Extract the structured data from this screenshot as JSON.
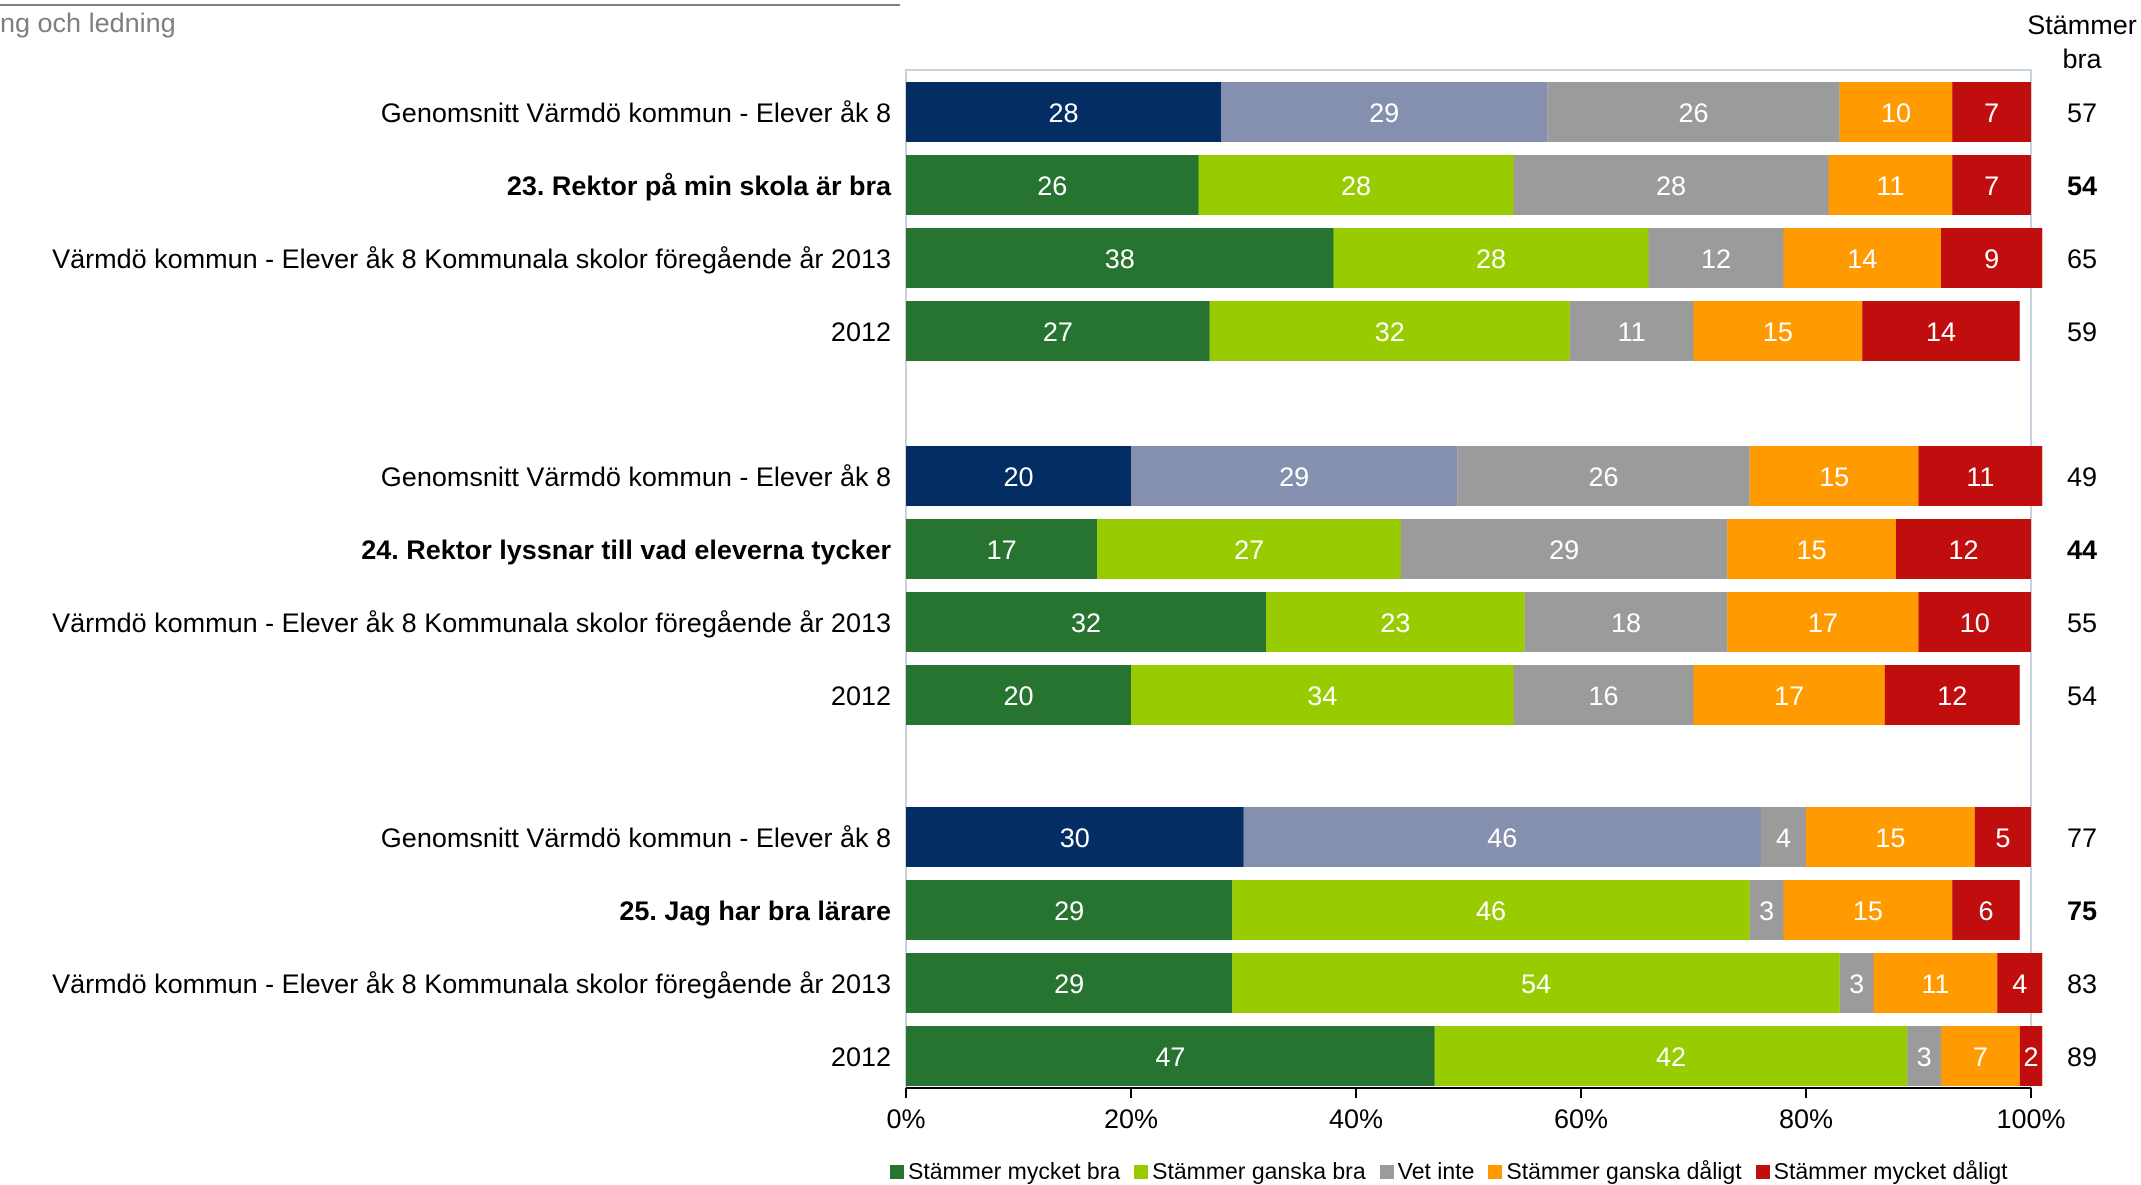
{
  "header": {
    "title": "ng och ledning"
  },
  "right_column_header": "Stämmer\nbra",
  "colors": {
    "avg_very_good": "#042e63",
    "avg_fairly_good": "#8590ae",
    "very_good": "#267430",
    "fairly_good": "#99cc00",
    "dont_know": "#9b9b9b",
    "fairly_bad": "#ff9a00",
    "very_bad": "#c00d0d"
  },
  "chart_data": {
    "type": "bar",
    "orientation": "horizontal",
    "stacked": true,
    "xlim": [
      0,
      100
    ],
    "xticks": [
      "0%",
      "20%",
      "40%",
      "60%",
      "80%",
      "100%"
    ],
    "legend": {
      "placement": "bottom",
      "entries": [
        "Stämmer mycket bra",
        "Stämmer ganska bra",
        "Vet inte",
        "Stämmer ganska dåligt",
        "Stämmer mycket dåligt"
      ]
    },
    "groups": [
      {
        "rows": [
          {
            "label": "Genomsnitt Värmdö kommun - Elever åk 8",
            "bold": false,
            "average": true,
            "values": [
              28,
              29,
              26,
              10,
              7
            ],
            "stammer_bra": "57"
          },
          {
            "label": "23. Rektor på min skola är bra",
            "bold": true,
            "average": false,
            "values": [
              26,
              28,
              28,
              11,
              7
            ],
            "stammer_bra": "54"
          },
          {
            "label": "Värmdö kommun - Elever åk 8 Kommunala skolor föregående år 2013",
            "bold": false,
            "average": false,
            "values": [
              38,
              28,
              12,
              14,
              9
            ],
            "stammer_bra": "65"
          },
          {
            "label": "2012",
            "bold": false,
            "average": false,
            "values": [
              27,
              32,
              11,
              15,
              14
            ],
            "stammer_bra": "59"
          }
        ]
      },
      {
        "rows": [
          {
            "label": "Genomsnitt Värmdö kommun - Elever åk 8",
            "bold": false,
            "average": true,
            "values": [
              20,
              29,
              26,
              15,
              11
            ],
            "stammer_bra": "49"
          },
          {
            "label": "24. Rektor lyssnar till vad eleverna tycker",
            "bold": true,
            "average": false,
            "values": [
              17,
              27,
              29,
              15,
              12
            ],
            "stammer_bra": "44"
          },
          {
            "label": "Värmdö kommun - Elever åk 8 Kommunala skolor föregående år 2013",
            "bold": false,
            "average": false,
            "values": [
              32,
              23,
              18,
              17,
              10
            ],
            "stammer_bra": "55"
          },
          {
            "label": "2012",
            "bold": false,
            "average": false,
            "values": [
              20,
              34,
              16,
              17,
              12
            ],
            "stammer_bra": "54"
          }
        ]
      },
      {
        "rows": [
          {
            "label": "Genomsnitt Värmdö kommun - Elever åk 8",
            "bold": false,
            "average": true,
            "values": [
              30,
              46,
              4,
              15,
              5
            ],
            "stammer_bra": "77"
          },
          {
            "label": "25. Jag har bra lärare",
            "bold": true,
            "average": false,
            "values": [
              29,
              46,
              3,
              15,
              6
            ],
            "stammer_bra": "75"
          },
          {
            "label": "Värmdö kommun - Elever åk 8 Kommunala skolor föregående år 2013",
            "bold": false,
            "average": false,
            "values": [
              29,
              54,
              3,
              11,
              4
            ],
            "stammer_bra": "83"
          },
          {
            "label": "2012",
            "bold": false,
            "average": false,
            "values": [
              47,
              42,
              3,
              7,
              2
            ],
            "stammer_bra": "89"
          }
        ]
      }
    ]
  }
}
